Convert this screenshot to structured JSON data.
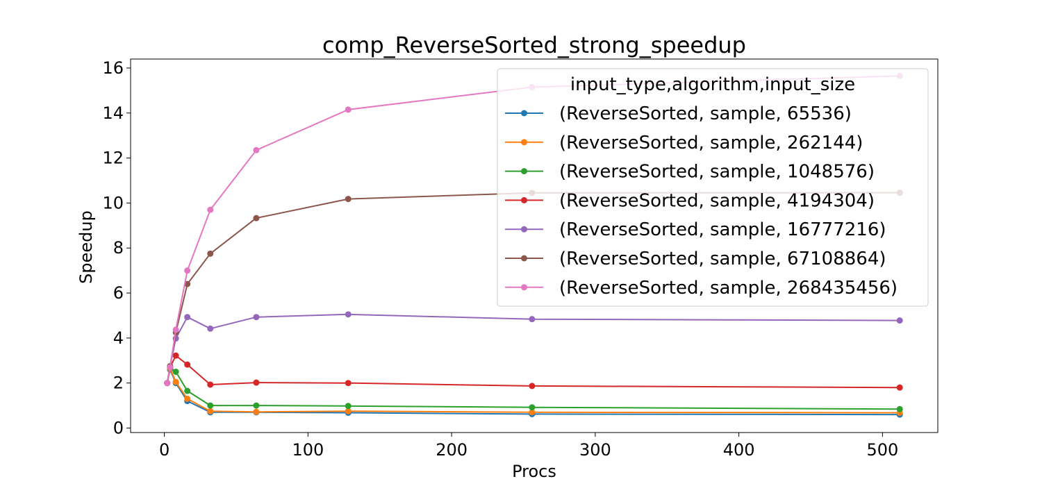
{
  "chart_data": {
    "type": "line",
    "title": "comp_ReverseSorted_strong_speedup",
    "xlabel": "Procs",
    "ylabel": "Speedup",
    "xlim": [
      -23.5,
      538.5
    ],
    "ylim": [
      -0.2,
      16.4
    ],
    "x_ticks": [
      0,
      100,
      200,
      300,
      400,
      500
    ],
    "y_ticks": [
      0,
      2,
      4,
      6,
      8,
      10,
      12,
      14,
      16
    ],
    "grid": false,
    "legend": {
      "title": "input_type,algorithm,input_size",
      "position": "top-right"
    },
    "x": [
      2,
      4,
      8,
      16,
      32,
      64,
      128,
      256,
      512
    ],
    "series": [
      {
        "name": "(ReverseSorted, sample, 65536)",
        "color": "#1f77b4",
        "values": [
          2.0,
          2.6,
          2.0,
          1.2,
          0.7,
          0.7,
          0.68,
          0.62,
          0.6
        ]
      },
      {
        "name": "(ReverseSorted, sample, 262144)",
        "color": "#ff7f0e",
        "values": [
          2.0,
          2.65,
          2.05,
          1.3,
          0.75,
          0.72,
          0.75,
          0.7,
          0.68
        ]
      },
      {
        "name": "(ReverseSorted, sample, 1048576)",
        "color": "#2ca02c",
        "values": [
          2.0,
          2.7,
          2.5,
          1.65,
          1.0,
          1.0,
          0.98,
          0.92,
          0.84
        ]
      },
      {
        "name": "(ReverseSorted, sample, 4194304)",
        "color": "#d62728",
        "values": [
          2.0,
          2.7,
          3.22,
          2.82,
          1.93,
          2.02,
          2.0,
          1.87,
          1.8
        ]
      },
      {
        "name": "(ReverseSorted, sample, 16777216)",
        "color": "#9467bd",
        "values": [
          2.0,
          2.75,
          3.98,
          4.93,
          4.42,
          4.93,
          5.05,
          4.84,
          4.78
        ]
      },
      {
        "name": "(ReverseSorted, sample, 67108864)",
        "color": "#8c564b",
        "values": [
          2.0,
          2.75,
          4.25,
          6.4,
          7.75,
          9.33,
          10.18,
          10.45,
          10.46
        ]
      },
      {
        "name": "(ReverseSorted, sample, 268435456)",
        "color": "#e377c2",
        "values": [
          2.0,
          2.7,
          4.37,
          7.0,
          9.7,
          12.35,
          14.15,
          15.15,
          15.65
        ]
      }
    ]
  }
}
